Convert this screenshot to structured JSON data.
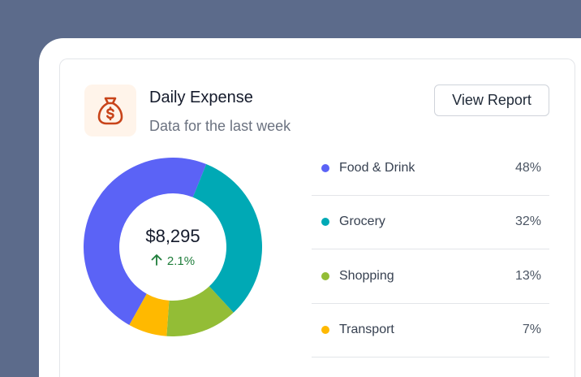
{
  "header": {
    "title": "Daily Expense",
    "subtitle": "Data for the last week",
    "icon": "money-bag-icon",
    "view_report_label": "View Report"
  },
  "summary": {
    "total": "$8,295",
    "change": "2.1%",
    "change_direction": "up",
    "change_color": "#1e7d3a"
  },
  "chart_data": {
    "type": "pie",
    "categories": [
      "Food & Drink",
      "Grocery",
      "Shopping",
      "Transport"
    ],
    "values": [
      48,
      32,
      13,
      7
    ],
    "labels": [
      "48%",
      "32%",
      "13%",
      "7%"
    ],
    "colors": [
      "#5b63f6",
      "#00a9b5",
      "#93bd36",
      "#ffb900"
    ],
    "donut": true
  }
}
